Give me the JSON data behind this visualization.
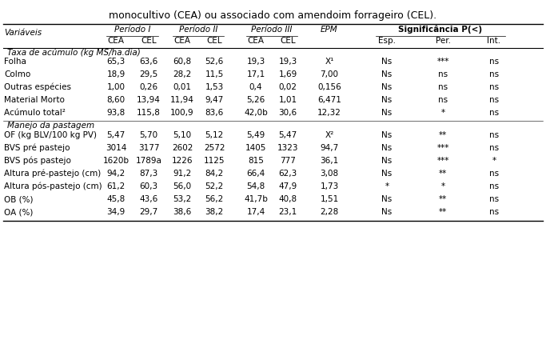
{
  "title": "monocultivo (CEA) ou associado com amendoim forrageiro (CEL).",
  "section1_header": "Taxa de acúmulo (kg MS/ha.dia)",
  "section2_header": "Manejo da pastagem",
  "rows1": [
    [
      "Folha",
      "65,3",
      "63,6",
      "60,8",
      "52,6",
      "19,3",
      "19,3",
      "X¹",
      "Ns",
      "***",
      "ns"
    ],
    [
      "Colmo",
      "18,9",
      "29,5",
      "28,2",
      "11,5",
      "17,1",
      "1,69",
      "7,00",
      "Ns",
      "ns",
      "ns"
    ],
    [
      "Outras espécies",
      "1,00",
      "0,26",
      "0,01",
      "1,53",
      "0,4",
      "0,02",
      "0,156",
      "Ns",
      "ns",
      "ns"
    ],
    [
      "Material Morto",
      "8,60",
      "13,94",
      "11,94",
      "9,47",
      "5,26",
      "1,01",
      "6,471",
      "Ns",
      "ns",
      "ns"
    ],
    [
      "Acúmulo total²",
      "93,8",
      "115,8",
      "100,9",
      "83,6",
      "42,0b",
      "30,6",
      "12,32",
      "Ns",
      "*",
      "ns"
    ]
  ],
  "rows2": [
    [
      "OF (kg BLV/100 kg PV)",
      "5,47",
      "5,70",
      "5,10",
      "5,12",
      "5,49",
      "5,47",
      "X²",
      "Ns",
      "**",
      "ns"
    ],
    [
      "BVS pré pastejo",
      "3014",
      "3177",
      "2602",
      "2572",
      "1405",
      "1323",
      "94,7",
      "Ns",
      "***",
      "ns"
    ],
    [
      "BVS pós pastejo",
      "1620b",
      "1789a",
      "1226",
      "1125",
      "815",
      "777",
      "36,1",
      "Ns",
      "***",
      "*"
    ],
    [
      "Altura pré-pastejo (cm)",
      "94,2",
      "87,3",
      "91,2",
      "84,2",
      "66,4",
      "62,3",
      "3,08",
      "Ns",
      "**",
      "ns"
    ],
    [
      "Altura pós-pastejo (cm)",
      "61,2",
      "60,3",
      "56,0",
      "52,2",
      "54,8",
      "47,9",
      "1,73",
      "*",
      "*",
      "ns"
    ],
    [
      "OB (%)",
      "45,8",
      "43,6",
      "53,2",
      "56,2",
      "41,7b",
      "40,8",
      "1,51",
      "Ns",
      "**",
      "ns"
    ],
    [
      "OA (%)",
      "34,9",
      "29,7",
      "38,6",
      "38,2",
      "17,4",
      "23,1",
      "2,28",
      "Ns",
      "**",
      "ns"
    ]
  ],
  "font_size": 7.5,
  "bg_color": "#ffffff"
}
